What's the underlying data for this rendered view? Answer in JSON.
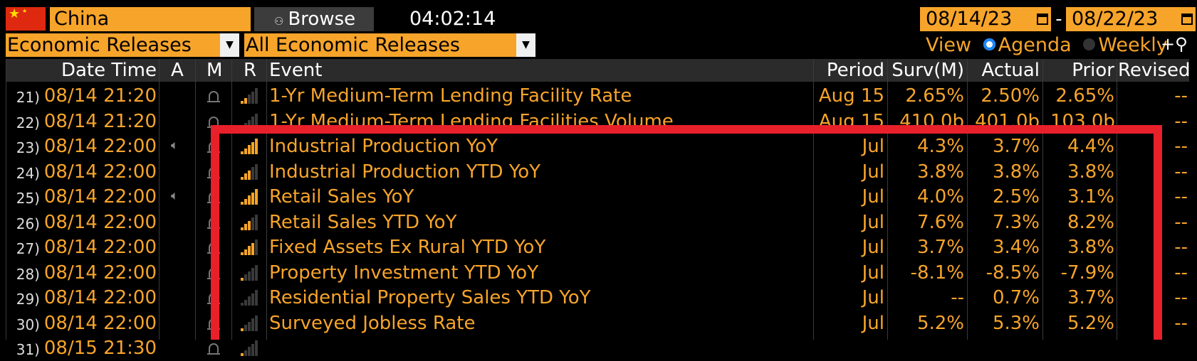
{
  "toolbar": {
    "country": "China",
    "browse_label": "Browse",
    "clock": "04:02:14",
    "date_from": "08/14/23",
    "date_separator": "-",
    "date_to": "08/22/23",
    "category": "Economic Releases",
    "filter": "All Economic Releases",
    "view_label": "View",
    "view_options": [
      "Agenda",
      "Weekly"
    ],
    "view_selected": "Agenda"
  },
  "table": {
    "columns": [
      "Date Time",
      "A",
      "M",
      "R",
      "Event",
      "Period",
      "Surv(M)",
      "Actual",
      "Prior",
      "Revised"
    ],
    "rows": [
      {
        "num": "21)",
        "datetime": "08/14 21:20",
        "alert": "",
        "bell": true,
        "relevance": 2,
        "event": "1-Yr Medium-Term Lending Facility Rate",
        "period": "Aug 15",
        "surv": "2.65%",
        "actual": "2.50%",
        "prior": "2.65%",
        "revised": "--"
      },
      {
        "num": "22)",
        "datetime": "08/14 21:20",
        "alert": "",
        "bell": true,
        "relevance": 1,
        "event": "1-Yr Medium-Term Lending Facilities Volume",
        "period": "Aug 15",
        "surv": "410.0b",
        "actual": "401.0b",
        "prior": "103.0b",
        "revised": "--"
      },
      {
        "num": "23)",
        "datetime": "08/14 22:00",
        "alert": "speaker",
        "bell": true,
        "relevance": 5,
        "event": "Industrial Production YoY",
        "period": "Jul",
        "surv": "4.3%",
        "actual": "3.7%",
        "prior": "4.4%",
        "revised": "--"
      },
      {
        "num": "24)",
        "datetime": "08/14 22:00",
        "alert": "",
        "bell": true,
        "relevance": 3,
        "event": "Industrial Production YTD YoY",
        "period": "Jul",
        "surv": "3.8%",
        "actual": "3.8%",
        "prior": "3.8%",
        "revised": "--"
      },
      {
        "num": "25)",
        "datetime": "08/14 22:00",
        "alert": "speaker",
        "bell": true,
        "relevance": 5,
        "event": "Retail Sales YoY",
        "period": "Jul",
        "surv": "4.0%",
        "actual": "2.5%",
        "prior": "3.1%",
        "revised": "--"
      },
      {
        "num": "26)",
        "datetime": "08/14 22:00",
        "alert": "",
        "bell": true,
        "relevance": 3,
        "event": "Retail Sales YTD YoY",
        "period": "Jul",
        "surv": "7.6%",
        "actual": "7.3%",
        "prior": "8.2%",
        "revised": "--"
      },
      {
        "num": "27)",
        "datetime": "08/14 22:00",
        "alert": "",
        "bell": true,
        "relevance": 4,
        "event": "Fixed Assets Ex Rural YTD YoY",
        "period": "Jul",
        "surv": "3.7%",
        "actual": "3.4%",
        "prior": "3.8%",
        "revised": "--"
      },
      {
        "num": "28)",
        "datetime": "08/14 22:00",
        "alert": "",
        "bell": true,
        "relevance": 1,
        "event": "Property Investment YTD YoY",
        "period": "Jul",
        "surv": "-8.1%",
        "actual": "-8.5%",
        "prior": "-7.9%",
        "revised": "--"
      },
      {
        "num": "29)",
        "datetime": "08/14 22:00",
        "alert": "",
        "bell": true,
        "relevance": 0,
        "event": "Residential Property Sales YTD YoY",
        "period": "Jul",
        "surv": "--",
        "actual": "0.7%",
        "prior": "3.7%",
        "revised": "--"
      },
      {
        "num": "30)",
        "datetime": "08/14 22:00",
        "alert": "",
        "bell": true,
        "relevance": 1,
        "event": "Surveyed Jobless Rate",
        "period": "Jul",
        "surv": "5.2%",
        "actual": "5.3%",
        "prior": "5.2%",
        "revised": "--"
      },
      {
        "num": "31)",
        "datetime": "08/15 21:30",
        "alert": "",
        "bell": true,
        "relevance": 1,
        "event": "",
        "period": "",
        "surv": "",
        "actual": "",
        "prior": "",
        "revised": ""
      }
    ]
  },
  "colors": {
    "accent": "#f7a42a",
    "highlight_box": "#e8202a",
    "background": "#000000",
    "header_bg": "#2b2b2b"
  }
}
